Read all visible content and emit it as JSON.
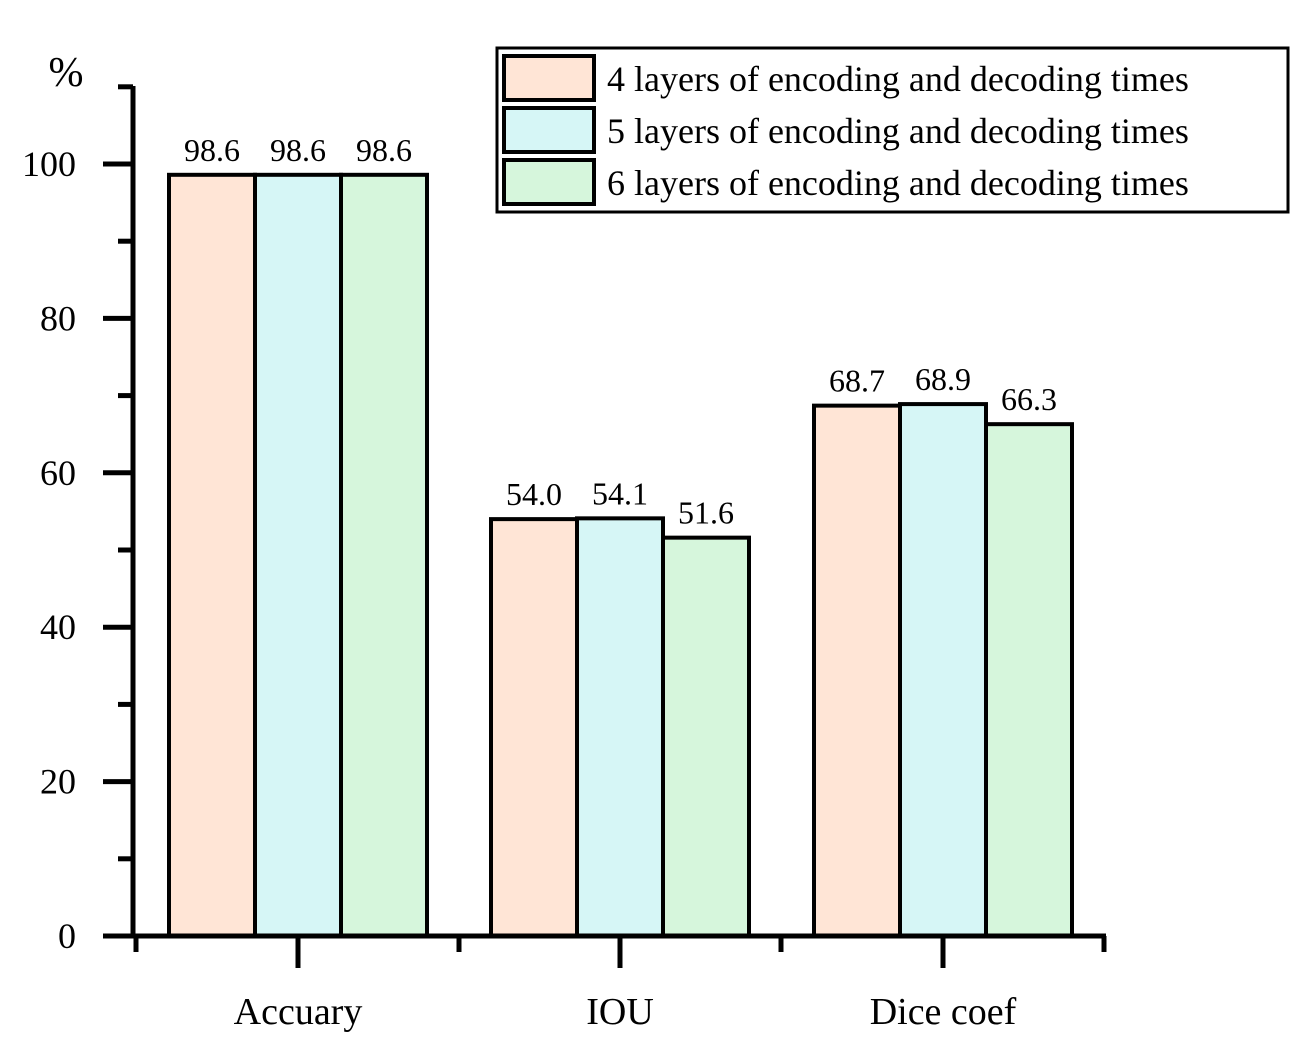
{
  "chart_data": {
    "type": "bar",
    "unit_label": "%",
    "categories": [
      "Accuary",
      "IOU",
      "Dice coef"
    ],
    "series": [
      {
        "name": "4 layers of encoding and decoding times",
        "color": "#FFE5D6",
        "values": [
          98.6,
          54.0,
          68.7
        ],
        "labels": [
          "98.6",
          "54.0",
          "68.7"
        ]
      },
      {
        "name": "5 layers of encoding and decoding times",
        "color": "#D6F6F6",
        "values": [
          98.6,
          54.1,
          68.9
        ],
        "labels": [
          "98.6",
          "54.1",
          "68.9"
        ]
      },
      {
        "name": "6 layers of encoding and decoding times",
        "color": "#D6F6DC",
        "values": [
          98.6,
          51.6,
          66.3
        ],
        "labels": [
          "98.6",
          "51.6",
          "66.3"
        ]
      }
    ],
    "ylim": [
      0,
      100
    ],
    "yticks": [
      0,
      20,
      40,
      60,
      80,
      100
    ],
    "ytick_labels": [
      "0",
      "20",
      "40",
      "60",
      "80",
      "100"
    ],
    "grid": false,
    "legend_position": "top-right"
  }
}
